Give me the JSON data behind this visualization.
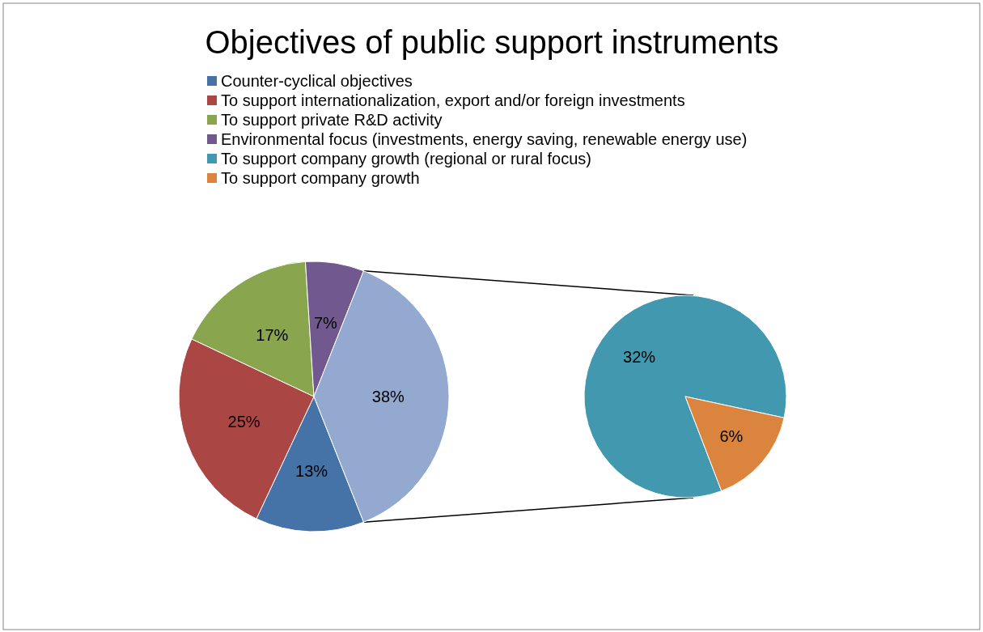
{
  "chart_data": [
    {
      "type": "pie",
      "title": "Objectives of public support instruments",
      "legend": "top",
      "categories": [
        "Counter-cyclical objectives",
        "To support internationalization, export and/or foreign investments",
        "To support private R&D activity",
        "Environmental focus (investments, energy saving, renewable energy use)",
        null
      ],
      "values": [
        13,
        25,
        17,
        7,
        38
      ],
      "colors": [
        "#4572a7",
        "#aa4643",
        "#89a54e",
        "#71588f",
        "#93a9d0"
      ],
      "value_labels": [
        "13%",
        "25%",
        "17%",
        "7%",
        "38%"
      ]
    },
    {
      "type": "pie",
      "legend": "top",
      "categories": [
        "To support company growth (regional or rural focus)",
        "To support company growth"
      ],
      "values": [
        32,
        6
      ],
      "colors": [
        "#4198af",
        "#db843d"
      ],
      "value_labels": [
        "32%",
        "6%"
      ]
    }
  ]
}
